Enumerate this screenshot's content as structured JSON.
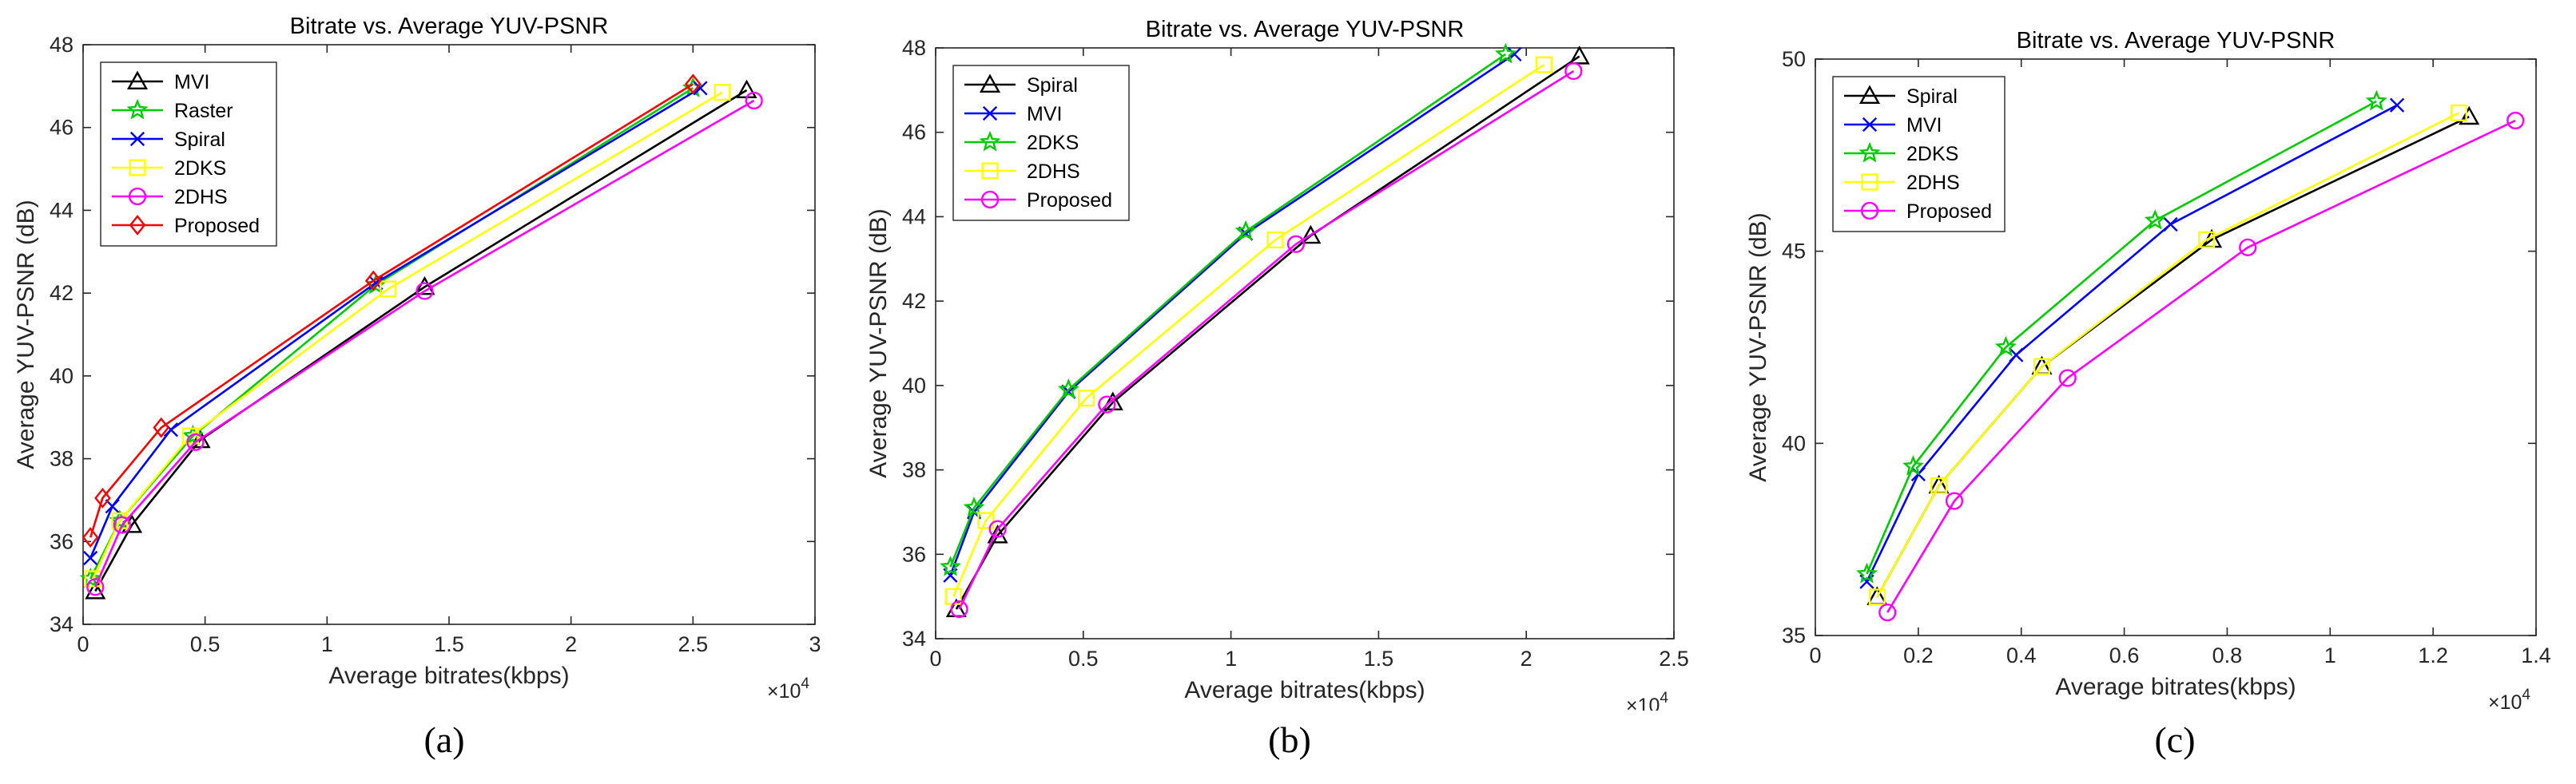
{
  "figure": {
    "captions": [
      "(a)",
      "(b)",
      "(c)"
    ]
  },
  "chart_data": [
    {
      "type": "line",
      "title": "Bitrate vs. Average YUV-PSNR",
      "xlabel": "Average bitrates(kbps)",
      "ylabel": "Average YUV-PSNR (dB)",
      "x_exponent_label": "×10",
      "x_exponent": "4",
      "xlim": [
        0,
        3
      ],
      "ylim": [
        34,
        48
      ],
      "xticks": [
        0,
        0.5,
        1,
        1.5,
        2,
        2.5,
        3
      ],
      "xtick_labels": [
        "0",
        "0.5",
        "1",
        "1.5",
        "2",
        "2.5",
        "3"
      ],
      "yticks": [
        34,
        36,
        38,
        40,
        42,
        44,
        46,
        48
      ],
      "ytick_labels": [
        "34",
        "36",
        "38",
        "40",
        "42",
        "44",
        "46",
        "48"
      ],
      "legend_position": "top-left",
      "series": [
        {
          "name": "MVI",
          "color": "#000000",
          "marker": "triangle",
          "x": [
            0.05,
            0.2,
            0.48,
            1.4,
            2.72
          ],
          "y": [
            34.8,
            36.4,
            38.45,
            42.15,
            46.9
          ]
        },
        {
          "name": "Raster",
          "color": "#00cc00",
          "marker": "star",
          "x": [
            0.03,
            0.15,
            0.45,
            1.2,
            2.5
          ],
          "y": [
            35.1,
            36.5,
            38.55,
            42.2,
            46.95
          ]
        },
        {
          "name": "Spiral",
          "color": "#0000ff",
          "marker": "x",
          "x": [
            0.03,
            0.12,
            0.36,
            1.2,
            2.53
          ],
          "y": [
            35.6,
            36.85,
            38.7,
            42.25,
            46.95
          ]
        },
        {
          "name": "2DKS",
          "color": "#ffff00",
          "marker": "square",
          "x": [
            0.04,
            0.15,
            0.44,
            1.25,
            2.62
          ],
          "y": [
            35.1,
            36.5,
            38.55,
            42.1,
            46.85
          ]
        },
        {
          "name": "2DHS",
          "color": "#ff00ff",
          "marker": "circle",
          "x": [
            0.05,
            0.16,
            0.46,
            1.4,
            2.75
          ],
          "y": [
            34.9,
            36.4,
            38.4,
            42.05,
            46.65
          ]
        },
        {
          "name": "Proposed",
          "color": "#ff0000",
          "marker": "diamond",
          "x": [
            0.03,
            0.08,
            0.32,
            1.19,
            2.5
          ],
          "y": [
            36.1,
            37.05,
            38.75,
            42.3,
            47.05
          ]
        }
      ]
    },
    {
      "type": "line",
      "title": "Bitrate vs. Average YUV-PSNR",
      "xlabel": "Average bitrates(kbps)",
      "ylabel": "Average YUV-PSNR (dB)",
      "x_exponent_label": "×10",
      "x_exponent": "4",
      "xlim": [
        0,
        2.5
      ],
      "ylim": [
        34,
        48
      ],
      "xticks": [
        0,
        0.5,
        1,
        1.5,
        2,
        2.5
      ],
      "xtick_labels": [
        "0",
        "0.5",
        "1",
        "1.5",
        "2",
        "2.5"
      ],
      "yticks": [
        34,
        36,
        38,
        40,
        42,
        44,
        46,
        48
      ],
      "ytick_labels": [
        "34",
        "36",
        "38",
        "40",
        "42",
        "44",
        "46",
        "48"
      ],
      "legend_position": "top-left",
      "series": [
        {
          "name": "Spiral",
          "color": "#000000",
          "marker": "triangle",
          "x": [
            0.07,
            0.21,
            0.6,
            1.27,
            2.18
          ],
          "y": [
            34.7,
            36.45,
            39.6,
            43.55,
            47.8
          ]
        },
        {
          "name": "MVI",
          "color": "#0000ff",
          "marker": "x",
          "x": [
            0.05,
            0.13,
            0.45,
            1.05,
            1.96
          ],
          "y": [
            35.5,
            37.0,
            39.85,
            43.6,
            47.85
          ]
        },
        {
          "name": "2DKS",
          "color": "#00cc00",
          "marker": "star",
          "x": [
            0.05,
            0.13,
            0.45,
            1.05,
            1.93
          ],
          "y": [
            35.7,
            37.1,
            39.9,
            43.65,
            47.85
          ]
        },
        {
          "name": "2DHS",
          "color": "#ffff00",
          "marker": "square",
          "x": [
            0.06,
            0.17,
            0.51,
            1.15,
            2.06
          ],
          "y": [
            35.0,
            36.8,
            39.7,
            43.45,
            47.6
          ]
        },
        {
          "name": "Proposed",
          "color": "#ff00ff",
          "marker": "circle",
          "x": [
            0.08,
            0.21,
            0.58,
            1.22,
            2.16
          ],
          "y": [
            34.7,
            36.6,
            39.55,
            43.35,
            47.45
          ]
        }
      ]
    },
    {
      "type": "line",
      "title": "Bitrate vs. Average YUV-PSNR",
      "xlabel": "Average bitrates(kbps)",
      "ylabel": "Average YUV-PSNR (dB)",
      "x_exponent_label": "×10",
      "x_exponent": "4",
      "xlim": [
        0,
        1.4
      ],
      "ylim": [
        35,
        50
      ],
      "xticks": [
        0,
        0.2,
        0.4,
        0.6,
        0.8,
        1,
        1.2,
        1.4
      ],
      "xtick_labels": [
        "0",
        "0.2",
        "0.4",
        "0.6",
        "0.8",
        "1",
        "1.2",
        "1.4"
      ],
      "yticks": [
        35,
        40,
        45,
        50
      ],
      "ytick_labels": [
        "35",
        "40",
        "45",
        "50"
      ],
      "legend_position": "top-left",
      "series": [
        {
          "name": "Spiral",
          "color": "#000000",
          "marker": "triangle",
          "x": [
            0.12,
            0.24,
            0.44,
            0.77,
            1.27
          ],
          "y": [
            36.0,
            38.9,
            42.0,
            45.3,
            48.5
          ]
        },
        {
          "name": "MVI",
          "color": "#0000ff",
          "marker": "x",
          "x": [
            0.1,
            0.2,
            0.39,
            0.69,
            1.13
          ],
          "y": [
            36.4,
            39.2,
            42.3,
            45.7,
            48.8
          ]
        },
        {
          "name": "2DKS",
          "color": "#00cc00",
          "marker": "star",
          "x": [
            0.1,
            0.19,
            0.37,
            0.66,
            1.09
          ],
          "y": [
            36.6,
            39.4,
            42.5,
            45.8,
            48.9
          ]
        },
        {
          "name": "2DHS",
          "color": "#ffff00",
          "marker": "square",
          "x": [
            0.12,
            0.24,
            0.44,
            0.76,
            1.25
          ],
          "y": [
            36.0,
            38.9,
            42.0,
            45.3,
            48.6
          ]
        },
        {
          "name": "Proposed",
          "color": "#ff00ff",
          "marker": "circle",
          "x": [
            0.14,
            0.27,
            0.49,
            0.84,
            1.36
          ],
          "y": [
            35.6,
            38.5,
            41.7,
            45.1,
            48.4
          ]
        }
      ]
    }
  ]
}
